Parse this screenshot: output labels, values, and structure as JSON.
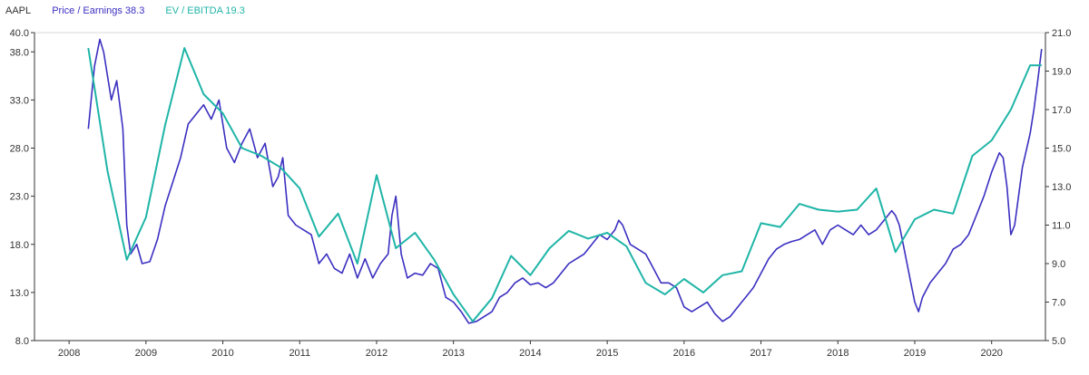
{
  "legend": {
    "ticker": "AAPL",
    "pe_label": "Price / Earnings 38.3",
    "ev_label": "EV / EBITDA 19.3"
  },
  "colors": {
    "pe": "#3b2fc0",
    "ev": "#1fb5a7",
    "grid": "#d9d9d9",
    "axis": "#333333"
  },
  "chart_data": {
    "type": "line",
    "title": "",
    "xlabel": "",
    "ylabel": "",
    "grid": false,
    "legend_position": "top-left",
    "x_ticks": [
      "2008",
      "2009",
      "2010",
      "2011",
      "2012",
      "2013",
      "2014",
      "2015",
      "2016",
      "2017",
      "2018",
      "2019",
      "2020"
    ],
    "x_range": [
      2007.55,
      2020.7
    ],
    "y_left": {
      "range": [
        8.0,
        40.0
      ],
      "ticks": [
        "8.0",
        "13.0",
        "18.0",
        "23.0",
        "28.0",
        "33.0",
        "38.0",
        "40.0"
      ]
    },
    "y_right": {
      "range": [
        5.0,
        21.0
      ],
      "ticks": [
        "5.0",
        "7.0",
        "9.0",
        "11.0",
        "13.0",
        "15.0",
        "17.0",
        "19.0",
        "21.0"
      ]
    },
    "series": [
      {
        "name": "Price / Earnings",
        "axis": "left",
        "x": [
          2008.25,
          2008.33,
          2008.4,
          2008.45,
          2008.55,
          2008.62,
          2008.7,
          2008.75,
          2008.8,
          2008.88,
          2008.95,
          2009.05,
          2009.15,
          2009.25,
          2009.35,
          2009.45,
          2009.55,
          2009.65,
          2009.75,
          2009.85,
          2009.95,
          2010.05,
          2010.15,
          2010.25,
          2010.35,
          2010.45,
          2010.55,
          2010.65,
          2010.72,
          2010.78,
          2010.85,
          2010.95,
          2011.05,
          2011.15,
          2011.25,
          2011.35,
          2011.45,
          2011.55,
          2011.65,
          2011.75,
          2011.85,
          2011.95,
          2012.05,
          2012.15,
          2012.2,
          2012.25,
          2012.32,
          2012.4,
          2012.5,
          2012.6,
          2012.7,
          2012.8,
          2012.9,
          2013.0,
          2013.1,
          2013.2,
          2013.3,
          2013.4,
          2013.5,
          2013.6,
          2013.7,
          2013.8,
          2013.9,
          2014.0,
          2014.1,
          2014.2,
          2014.3,
          2014.4,
          2014.5,
          2014.6,
          2014.7,
          2014.8,
          2014.9,
          2015.0,
          2015.1,
          2015.15,
          2015.2,
          2015.3,
          2015.4,
          2015.5,
          2015.6,
          2015.7,
          2015.8,
          2015.9,
          2016.0,
          2016.1,
          2016.2,
          2016.3,
          2016.4,
          2016.5,
          2016.6,
          2016.7,
          2016.8,
          2016.9,
          2017.0,
          2017.1,
          2017.2,
          2017.3,
          2017.4,
          2017.5,
          2017.6,
          2017.7,
          2017.8,
          2017.9,
          2018.0,
          2018.1,
          2018.2,
          2018.3,
          2018.4,
          2018.5,
          2018.6,
          2018.7,
          2018.75,
          2018.8,
          2018.85,
          2018.9,
          2018.95,
          2019.0,
          2019.05,
          2019.1,
          2019.2,
          2019.3,
          2019.4,
          2019.5,
          2019.6,
          2019.7,
          2019.8,
          2019.9,
          2020.0,
          2020.1,
          2020.15,
          2020.2,
          2020.25,
          2020.3,
          2020.4,
          2020.5,
          2020.55,
          2020.6,
          2020.65
        ],
        "values": [
          30.0,
          36.5,
          39.3,
          38.0,
          33.0,
          35.0,
          30.0,
          20.0,
          17.0,
          18.0,
          16.0,
          16.2,
          18.5,
          22.0,
          24.5,
          27.0,
          30.5,
          31.5,
          32.5,
          31.0,
          33.0,
          28.0,
          26.5,
          28.5,
          30.0,
          27.0,
          28.5,
          24.0,
          25.0,
          27.0,
          21.0,
          20.0,
          19.5,
          19.0,
          16.0,
          17.0,
          15.5,
          15.0,
          17.0,
          14.5,
          16.5,
          14.5,
          16.0,
          17.0,
          21.0,
          23.0,
          17.0,
          14.5,
          15.0,
          14.8,
          16.0,
          15.5,
          12.5,
          12.0,
          11.0,
          9.8,
          10.0,
          10.5,
          11.0,
          12.5,
          13.0,
          14.0,
          14.5,
          13.8,
          14.0,
          13.5,
          14.0,
          15.0,
          16.0,
          16.5,
          17.0,
          18.0,
          19.0,
          18.5,
          19.5,
          20.5,
          20.0,
          18.0,
          17.5,
          17.0,
          15.5,
          14.0,
          14.0,
          13.5,
          11.5,
          11.0,
          11.5,
          12.0,
          10.8,
          10.0,
          10.5,
          11.5,
          12.5,
          13.5,
          15.0,
          16.5,
          17.5,
          18.0,
          18.3,
          18.5,
          19.0,
          19.5,
          18.0,
          19.5,
          20.0,
          19.5,
          19.0,
          20.0,
          19.0,
          19.5,
          20.5,
          21.5,
          21.0,
          20.0,
          18.0,
          16.0,
          14.0,
          12.0,
          11.0,
          12.5,
          14.0,
          15.0,
          16.0,
          17.5,
          18.0,
          19.0,
          21.0,
          23.0,
          25.5,
          27.5,
          27.0,
          24.0,
          19.0,
          20.0,
          26.0,
          29.5,
          32.0,
          35.0,
          38.3
        ]
      },
      {
        "name": "EV / EBITDA",
        "axis": "right",
        "x": [
          2008.25,
          2008.5,
          2008.75,
          2009.0,
          2009.25,
          2009.5,
          2009.75,
          2010.0,
          2010.25,
          2010.5,
          2010.75,
          2011.0,
          2011.25,
          2011.5,
          2011.75,
          2012.0,
          2012.25,
          2012.5,
          2012.75,
          2013.0,
          2013.25,
          2013.5,
          2013.75,
          2014.0,
          2014.25,
          2014.5,
          2014.75,
          2015.0,
          2015.25,
          2015.5,
          2015.75,
          2016.0,
          2016.25,
          2016.5,
          2016.75,
          2017.0,
          2017.25,
          2017.5,
          2017.75,
          2018.0,
          2018.25,
          2018.5,
          2018.75,
          2019.0,
          2019.25,
          2019.5,
          2019.75,
          2020.0,
          2020.25,
          2020.5,
          2020.65
        ],
        "values": [
          20.2,
          13.8,
          9.2,
          11.4,
          16.2,
          20.2,
          17.8,
          16.8,
          15.0,
          14.6,
          14.0,
          12.9,
          10.4,
          11.6,
          9.0,
          13.6,
          9.8,
          10.6,
          9.2,
          7.4,
          6.0,
          7.2,
          9.4,
          8.4,
          9.8,
          10.7,
          10.3,
          10.6,
          9.9,
          8.0,
          7.4,
          8.2,
          7.5,
          8.4,
          8.6,
          11.1,
          10.9,
          12.1,
          11.8,
          11.7,
          11.8,
          12.9,
          9.6,
          11.3,
          11.8,
          11.6,
          14.6,
          15.4,
          17.0,
          19.3,
          19.3
        ]
      }
    ]
  }
}
